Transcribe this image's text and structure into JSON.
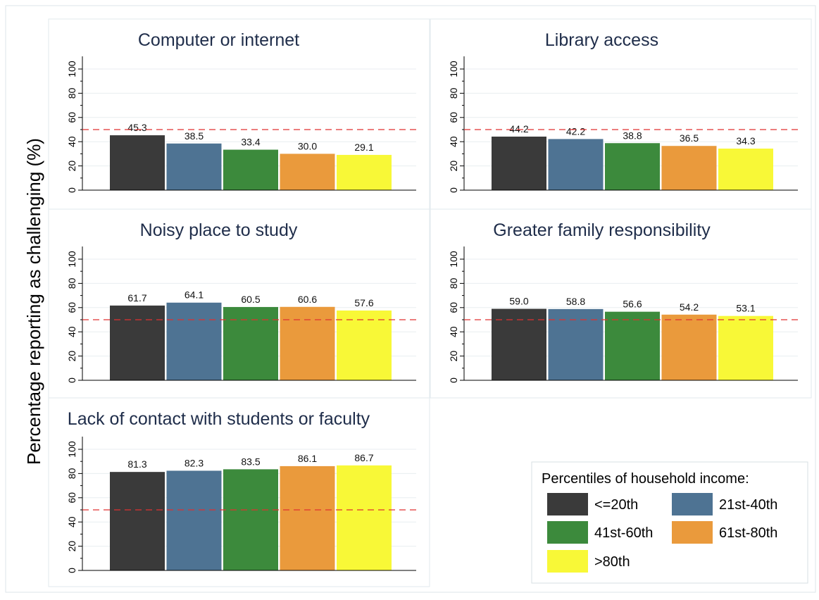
{
  "chart_data": {
    "type": "bar",
    "ylabel": "Percentage reporting as challenging (%)",
    "ylim": [
      0,
      100
    ],
    "yticks": [
      "0",
      "20",
      "40",
      "60",
      "80",
      "100"
    ],
    "reference_line": 50,
    "grid": true,
    "legend": {
      "title": "Percentiles of household income:",
      "placement": "bottom-right"
    },
    "series": [
      {
        "name": "<=20th",
        "color": "#3a3a3a"
      },
      {
        "name": "21st-40th",
        "color": "#4e7393"
      },
      {
        "name": "41st-60th",
        "color": "#3c8a3c"
      },
      {
        "name": "61st-80th",
        "color": "#ea9a3c"
      },
      {
        "name": ">80th",
        "color": "#f8f837"
      }
    ],
    "panels": [
      {
        "title": "Computer or internet",
        "values": [
          45.3,
          38.5,
          33.4,
          30.0,
          29.1
        ],
        "labels": [
          "45.3",
          "38.5",
          "33.4",
          "30.0",
          "29.1"
        ]
      },
      {
        "title": "Library access",
        "values": [
          44.2,
          42.2,
          38.8,
          36.5,
          34.3
        ],
        "labels": [
          "44.2",
          "42.2",
          "38.8",
          "36.5",
          "34.3"
        ]
      },
      {
        "title": "Noisy place to study",
        "values": [
          61.7,
          64.1,
          60.5,
          60.6,
          57.6
        ],
        "labels": [
          "61.7",
          "64.1",
          "60.5",
          "60.6",
          "57.6"
        ]
      },
      {
        "title": "Greater family responsibility",
        "values": [
          59.0,
          58.8,
          56.6,
          54.2,
          53.1
        ],
        "labels": [
          "59.0",
          "58.8",
          "56.6",
          "54.2",
          "53.1"
        ]
      },
      {
        "title": "Lack of contact with students or faculty",
        "values": [
          81.3,
          82.3,
          83.5,
          86.1,
          86.7
        ],
        "labels": [
          "81.3",
          "82.3",
          "83.5",
          "86.1",
          "86.7"
        ]
      }
    ],
    "colors": {
      "reference_line": "#e03030",
      "grid": "#e8eef0",
      "title": "#1f2d4a"
    }
  }
}
